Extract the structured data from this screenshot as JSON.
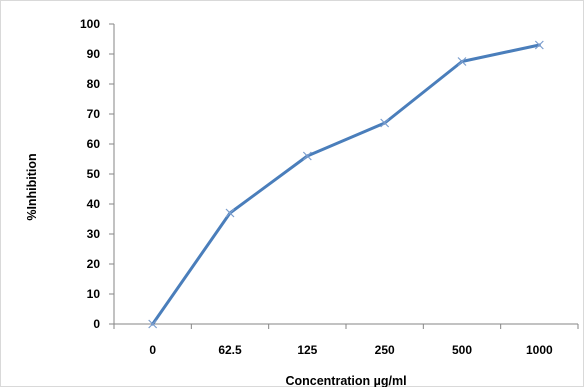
{
  "chart_data": {
    "type": "line",
    "categories": [
      "0",
      "62.5",
      "125",
      "250",
      "500",
      "1000"
    ],
    "series": [
      {
        "values": [
          0,
          37,
          56,
          67,
          87.5,
          93
        ]
      }
    ],
    "xlabel": "Concentration  µg/ml",
    "ylabel": "%Inhibition",
    "ylim": [
      0,
      100
    ],
    "yticks": [
      "0",
      "10",
      "20",
      "30",
      "40",
      "50",
      "60",
      "70",
      "80",
      "90",
      "100"
    ],
    "grid": false,
    "legend": "none",
    "marker": "x",
    "colors": {
      "series": "#4a7ebb",
      "marker": "#7a9ccd",
      "axis": "#868686",
      "frame": "#d9d9d9"
    }
  }
}
